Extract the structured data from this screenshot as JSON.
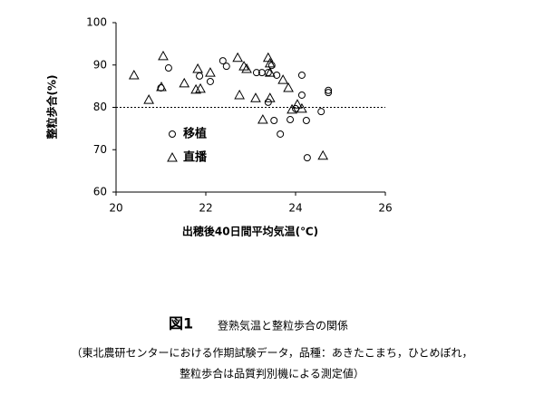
{
  "chart_data": {
    "type": "scatter",
    "xlabel": "出穂後40日間平均気温(℃)",
    "ylabel": "整粒歩合(%)",
    "xlim": [
      20,
      26
    ],
    "xticks": [
      20,
      22,
      24,
      26
    ],
    "ylim": [
      60,
      100
    ],
    "yticks": [
      60,
      70,
      80,
      90,
      100
    ],
    "hline": 80,
    "series": [
      {
        "name": "移植",
        "marker": "circle",
        "color": "#000000",
        "x": [
          21.17,
          21.0,
          21.86,
          22.1,
          22.38,
          22.46,
          23.13,
          23.25,
          23.39,
          23.47,
          23.58,
          23.39,
          23.52,
          23.66,
          23.88,
          24.0,
          24.14,
          24.14,
          24.24,
          24.26,
          24.57,
          24.73,
          24.73
        ],
        "values": [
          89.3,
          84.6,
          87.4,
          86.1,
          91.0,
          89.7,
          88.2,
          88.2,
          88.2,
          89.9,
          87.6,
          81.2,
          76.9,
          73.7,
          77.1,
          79.7,
          87.6,
          82.9,
          76.9,
          68.1,
          79.0,
          84.0,
          83.5
        ]
      },
      {
        "name": "直播",
        "marker": "triangle",
        "color": "#000000",
        "x": [
          20.4,
          20.73,
          21.01,
          21.05,
          21.52,
          21.82,
          21.78,
          21.88,
          22.1,
          22.71,
          22.75,
          22.85,
          22.91,
          23.11,
          23.27,
          23.39,
          23.43,
          23.43,
          23.43,
          23.72,
          23.84,
          23.92,
          24.04,
          24.14,
          24.61
        ],
        "values": [
          87.6,
          81.8,
          84.8,
          92.1,
          85.7,
          89.1,
          84.2,
          84.4,
          88.2,
          91.7,
          82.9,
          89.7,
          89.1,
          82.2,
          77.1,
          91.7,
          90.4,
          88.2,
          82.2,
          86.5,
          84.6,
          79.5,
          80.7,
          79.7,
          68.6
        ]
      }
    ]
  },
  "caption": {
    "label": "図1",
    "text": "登熟気温と整粒歩合の関係"
  },
  "note": [
    "（東北農研センターにおける作期試験データ，品種：あきたこまち，ひとめぼれ，",
    "整粒歩合は品質判別機による測定値）"
  ]
}
